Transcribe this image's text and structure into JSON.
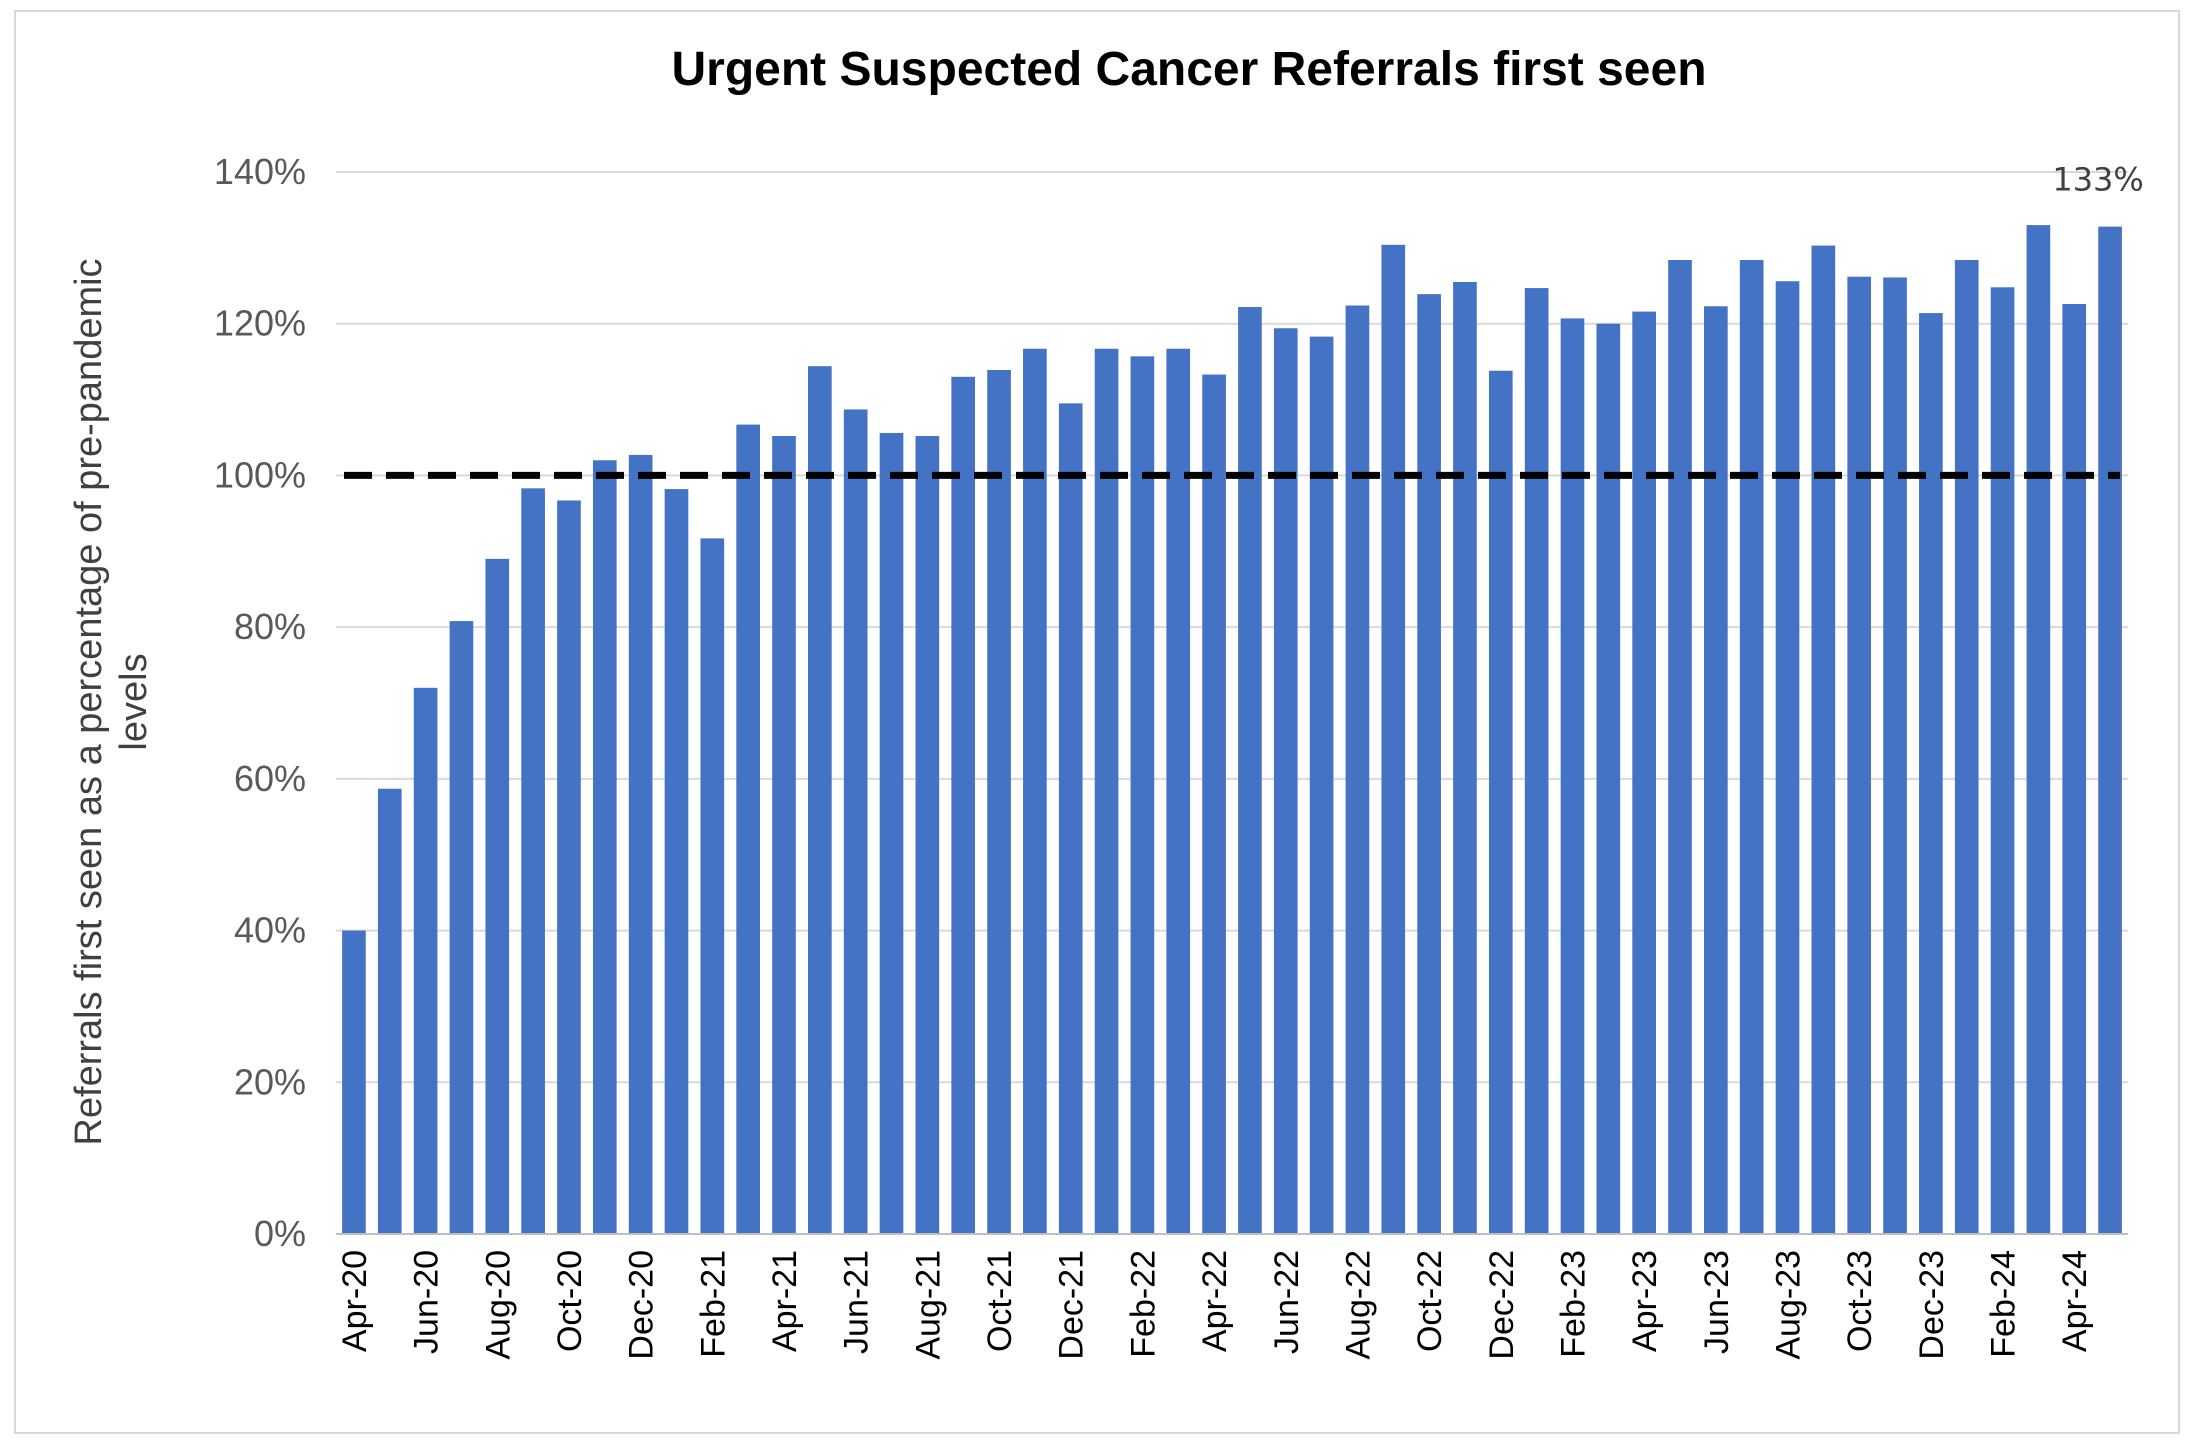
{
  "chart_data": {
    "type": "bar",
    "title": "Urgent Suspected Cancer Referrals first seen",
    "xlabel": "",
    "ylabel_lines": [
      "Referrals first seen as a percentage of pre-pandemic",
      "levels"
    ],
    "ylim": [
      0,
      140
    ],
    "y_unit": "%",
    "yticks": [
      0,
      20,
      40,
      60,
      80,
      100,
      120,
      140
    ],
    "ytick_labels": [
      "0%",
      "20%",
      "40%",
      "60%",
      "80%",
      "100%",
      "120%",
      "140%"
    ],
    "grid": true,
    "legend": "none",
    "bar_color": "#4472C4",
    "reference_line": {
      "value": 100,
      "style": "dashed",
      "color": "#000000"
    },
    "categories": [
      "Apr-20",
      "May-20",
      "Jun-20",
      "Jul-20",
      "Aug-20",
      "Sep-20",
      "Oct-20",
      "Nov-20",
      "Dec-20",
      "Jan-21",
      "Feb-21",
      "Mar-21",
      "Apr-21",
      "May-21",
      "Jun-21",
      "Jul-21",
      "Aug-21",
      "Sep-21",
      "Oct-21",
      "Nov-21",
      "Dec-21",
      "Jan-22",
      "Feb-22",
      "Mar-22",
      "Apr-22",
      "May-22",
      "Jun-22",
      "Jul-22",
      "Aug-22",
      "Sep-22",
      "Oct-22",
      "Nov-22",
      "Dec-22",
      "Jan-23",
      "Feb-23",
      "Mar-23",
      "Apr-23",
      "May-23",
      "Jun-23",
      "Jul-23",
      "Aug-23",
      "Sep-23",
      "Oct-23",
      "Nov-23",
      "Dec-23",
      "Jan-24",
      "Feb-24",
      "Mar-24",
      "Apr-24",
      "May-24"
    ],
    "tick_labels": [
      "Apr-20",
      "Jun-20",
      "Aug-20",
      "Oct-20",
      "Dec-20",
      "Feb-21",
      "Apr-21",
      "Jun-21",
      "Aug-21",
      "Oct-21",
      "Dec-21",
      "Feb-22",
      "Apr-22",
      "Jun-22",
      "Aug-22",
      "Oct-22",
      "Dec-22",
      "Feb-23",
      "Apr-23",
      "Jun-23",
      "Aug-23",
      "Oct-23",
      "Dec-23",
      "Feb-24",
      "Apr-24"
    ],
    "values": [
      40,
      58.7,
      72,
      80.8,
      89,
      98.3,
      96.7,
      102,
      102.7,
      98.2,
      91.7,
      106.7,
      105.2,
      114.4,
      108.7,
      105.6,
      105.2,
      113,
      113.9,
      116.7,
      109.5,
      116.7,
      115.7,
      116.7,
      113.3,
      122.2,
      119.4,
      118.3,
      122.4,
      130.4,
      123.9,
      125.5,
      113.8,
      124.7,
      120.7,
      120,
      121.6,
      128.4,
      122.3,
      128.4,
      125.6,
      130.3,
      126.2,
      126.1,
      121.4,
      128.4,
      124.8,
      133,
      122.6,
      132.8
    ],
    "data_labels": [
      {
        "index": 49,
        "text": "133%"
      }
    ]
  }
}
